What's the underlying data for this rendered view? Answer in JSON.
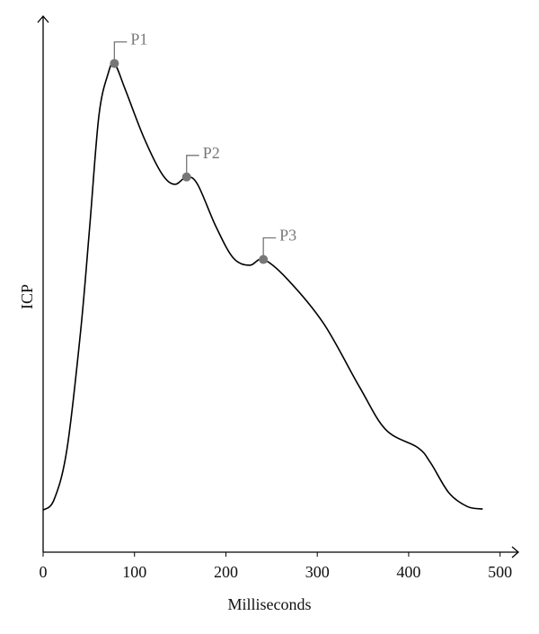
{
  "chart_data": {
    "type": "line",
    "xlabel": "Milliseconds",
    "ylabel": "ICP",
    "x": [
      0,
      12,
      26,
      41,
      51,
      61,
      71,
      78,
      90,
      110,
      130,
      144,
      157,
      169,
      189,
      208,
      226,
      241,
      267,
      307,
      346,
      375,
      410,
      424,
      444,
      464,
      481
    ],
    "series": [
      {
        "color": "#000000",
        "values": [
          8,
          10,
          19.5,
          42,
          62,
          83,
          91,
          93,
          88,
          79,
          72,
          70,
          71.4,
          70,
          62,
          56,
          54.6,
          55.7,
          52,
          43.5,
          31.5,
          23.3,
          19.9,
          17,
          11.3,
          8.7,
          8.2
        ]
      }
    ],
    "annotations": [
      {
        "label": "P1",
        "x": 78,
        "y": 93
      },
      {
        "label": "P2",
        "x": 157,
        "y": 71.4
      },
      {
        "label": "P3",
        "x": 241,
        "y": 55.7
      }
    ],
    "marker_color": "#777777",
    "xlim": [
      0,
      520
    ],
    "xticks": [
      0,
      100,
      200,
      300,
      400,
      500
    ],
    "ylim": [
      0,
      102
    ]
  }
}
